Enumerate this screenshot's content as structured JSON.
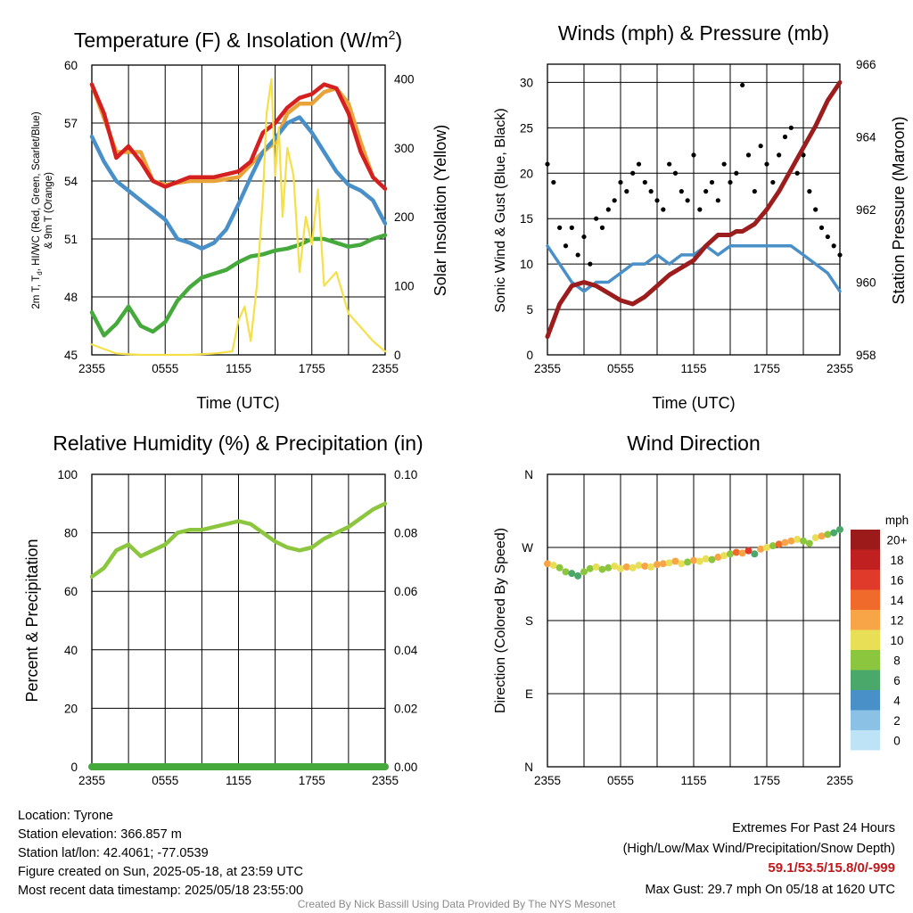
{
  "chart_data": [
    {
      "type": "line",
      "title": "Temperature (F) & Insolation (W/m²)",
      "title_parts": {
        "main": "Temperature (F) & Insolation (W/m",
        "sup": "2",
        "end": ")"
      },
      "xlabel": "Time (UTC)",
      "ylabel_lines": [
        "2m T, T",
        "d",
        ", HI/WC (Red, Green, Scarlet/Blue)",
        "& 9m T (Orange)"
      ],
      "y2label": "Solar Insolation (Yellow)",
      "xticks": [
        "2355",
        "0555",
        "1155",
        "1755",
        "2355"
      ],
      "ylim": [
        45,
        60
      ],
      "yticks": [
        45,
        48,
        51,
        54,
        57,
        60
      ],
      "y2lim": [
        0,
        420
      ],
      "y2ticks": [
        0,
        100,
        200,
        300,
        400
      ],
      "series": [
        {
          "color": "#e8a33a",
          "axis": "left",
          "x": [
            0,
            2,
            4,
            5,
            6,
            8,
            10,
            12,
            14,
            15,
            16,
            17,
            18,
            19,
            20,
            21,
            22,
            23,
            24
          ],
          "values": [
            59.0,
            55.5,
            55.5,
            54.0,
            53.8,
            54.0,
            54.0,
            54.2,
            55.5,
            56.0,
            57.5,
            58.0,
            58.0,
            58.6,
            58.8,
            58.0,
            56.0,
            54.2,
            53.6
          ]
        },
        {
          "color": "#d42020",
          "axis": "left",
          "x": [
            0,
            1,
            2,
            3,
            4,
            5,
            6,
            8,
            10,
            12,
            13,
            14,
            15,
            16,
            17,
            18,
            19,
            20,
            21,
            22,
            23,
            24
          ],
          "values": [
            59.0,
            57.5,
            55.2,
            55.8,
            55.0,
            54.0,
            53.7,
            54.2,
            54.2,
            54.5,
            55.0,
            56.5,
            57.0,
            57.8,
            58.3,
            58.5,
            59.0,
            58.8,
            57.5,
            55.5,
            54.2,
            53.6
          ]
        },
        {
          "color": "#4a90c8",
          "axis": "left",
          "x": [
            0,
            1,
            2,
            3,
            4,
            5,
            6,
            7,
            8,
            9,
            10,
            11,
            12,
            13,
            14,
            15,
            16,
            17,
            18,
            19,
            20,
            21,
            22,
            23,
            24
          ],
          "values": [
            56.3,
            55.0,
            54.0,
            53.5,
            53.0,
            52.5,
            52.0,
            51.0,
            50.8,
            50.5,
            50.8,
            51.5,
            52.8,
            54.2,
            55.5,
            56.2,
            57.0,
            57.3,
            56.5,
            55.5,
            54.5,
            53.8,
            53.5,
            53.0,
            51.8
          ]
        },
        {
          "color": "#46a93c",
          "axis": "left",
          "x": [
            0,
            1,
            2,
            3,
            4,
            5,
            6,
            7,
            8,
            9,
            10,
            11,
            12,
            13,
            14,
            15,
            16,
            17,
            18,
            19,
            20,
            21,
            22,
            23,
            24
          ],
          "values": [
            47.2,
            46.0,
            46.6,
            47.5,
            46.5,
            46.2,
            46.7,
            47.8,
            48.5,
            49.0,
            49.2,
            49.4,
            49.8,
            50.1,
            50.2,
            50.4,
            50.5,
            50.7,
            51.0,
            51.0,
            50.8,
            50.6,
            50.7,
            51.0,
            51.2
          ]
        },
        {
          "color": "#f5e04a",
          "axis": "right",
          "x": [
            0,
            2,
            4,
            6,
            8,
            10,
            11.5,
            12,
            12.5,
            13,
            13.5,
            14,
            14.3,
            14.7,
            15,
            15.3,
            15.6,
            16,
            16.5,
            17,
            17.5,
            18,
            18.5,
            19,
            20,
            21,
            22,
            23,
            24
          ],
          "values": [
            15,
            2,
            0,
            0,
            0,
            2,
            5,
            50,
            70,
            20,
            100,
            230,
            350,
            400,
            260,
            330,
            200,
            300,
            260,
            120,
            200,
            160,
            240,
            100,
            120,
            60,
            40,
            20,
            5
          ]
        }
      ]
    },
    {
      "type": "scatter",
      "title": "Winds (mph) & Pressure (mb)",
      "xlabel": "Time (UTC)",
      "ylabel": "Sonic Wind & Gust (Blue, Black)",
      "y2label": "Station Pressure (Maroon)",
      "xticks": [
        "2355",
        "0555",
        "1155",
        "1755",
        "2355"
      ],
      "ylim": [
        0,
        32
      ],
      "yticks": [
        0,
        5,
        10,
        15,
        20,
        25,
        30
      ],
      "y2lim": [
        958,
        966
      ],
      "y2ticks": [
        958,
        960,
        962,
        964,
        966
      ],
      "series": [
        {
          "type": "line",
          "color": "#4a90c8",
          "axis": "left",
          "x": [
            0,
            1,
            2,
            3,
            4,
            5,
            6,
            7,
            8,
            9,
            10,
            11,
            12,
            13,
            14,
            15,
            16,
            17,
            18,
            19,
            20,
            21,
            22,
            23,
            24
          ],
          "values": [
            12,
            10,
            8,
            7,
            8,
            8,
            9,
            10,
            10,
            11,
            10,
            11,
            11,
            12,
            11,
            12,
            12,
            12,
            12,
            12,
            12,
            11,
            10,
            9,
            7
          ]
        },
        {
          "type": "scatter",
          "color": "#000000",
          "axis": "left",
          "x": [
            0,
            0.5,
            1,
            1.5,
            2,
            2.5,
            3,
            3.5,
            4,
            4.5,
            5,
            5.5,
            6,
            6.5,
            7,
            7.5,
            8,
            8.5,
            9,
            9.5,
            10,
            10.5,
            11,
            11.5,
            12,
            12.5,
            13,
            13.5,
            14,
            14.5,
            15,
            15.5,
            16,
            16.5,
            17,
            17.5,
            18,
            18.5,
            19,
            19.5,
            20,
            20.5,
            21,
            21.5,
            22,
            22.5,
            23,
            23.5,
            24
          ],
          "values": [
            21,
            19,
            14,
            12,
            14,
            11,
            13,
            10,
            15,
            14,
            16,
            17,
            19,
            18,
            20,
            21,
            19,
            18,
            17,
            16,
            21,
            20,
            18,
            17,
            22,
            16,
            18,
            19,
            17,
            21,
            19,
            20,
            29.7,
            22,
            18,
            23,
            21,
            19,
            22,
            24,
            25,
            20,
            22,
            18,
            16,
            14,
            13,
            12,
            11
          ]
        },
        {
          "type": "line",
          "color": "#9b1d1d",
          "axis": "right",
          "x": [
            0,
            1,
            2,
            3,
            4,
            5,
            6,
            7,
            8,
            9,
            10,
            11,
            12,
            13,
            14,
            15,
            15.5,
            16,
            17,
            18,
            19,
            20,
            21,
            22,
            23,
            24
          ],
          "values": [
            958.5,
            959.4,
            959.9,
            960.0,
            959.9,
            959.7,
            959.5,
            959.4,
            959.6,
            959.9,
            960.2,
            960.4,
            960.6,
            961.0,
            961.3,
            961.3,
            961.4,
            961.4,
            961.6,
            962.0,
            962.5,
            963.1,
            963.7,
            964.3,
            965.0,
            965.5
          ]
        }
      ]
    },
    {
      "type": "line",
      "title": "Relative Humidity (%) & Precipitation (in)",
      "ylabel": "Percent & Precipitation",
      "xticks": [
        "2355",
        "0555",
        "1155",
        "1755",
        "2355"
      ],
      "ylim": [
        0,
        100
      ],
      "yticks": [
        0,
        20,
        40,
        60,
        80,
        100
      ],
      "y2lim": [
        0,
        0.1
      ],
      "y2ticks": [
        "0.00",
        "0.02",
        "0.04",
        "0.06",
        "0.08",
        "0.10"
      ],
      "series": [
        {
          "color": "#8cc63f",
          "axis": "left",
          "x": [
            0,
            1,
            2,
            3,
            4,
            5,
            6,
            7,
            8,
            9,
            10,
            11,
            12,
            13,
            14,
            15,
            16,
            17,
            18,
            19,
            20,
            21,
            22,
            23,
            24
          ],
          "values": [
            65,
            68,
            74,
            76,
            72,
            74,
            76,
            80,
            81,
            81,
            82,
            83,
            84,
            83,
            80,
            77,
            75,
            74,
            75,
            78,
            80,
            82,
            85,
            88,
            90
          ]
        },
        {
          "color": "#46a93c",
          "axis": "right",
          "x": [
            0,
            24
          ],
          "values": [
            0.0,
            0.0
          ]
        }
      ]
    },
    {
      "type": "scatter",
      "title": "Wind Direction",
      "ylabel": "Direction (Colored By Speed)",
      "xticks": [
        "2355",
        "0555",
        "1155",
        "1755",
        "2355"
      ],
      "ylim": [
        0,
        360
      ],
      "ytick_values": [
        0,
        90,
        180,
        270,
        360
      ],
      "ytick_labels": [
        "N",
        "E",
        "S",
        "W",
        "N"
      ],
      "points": [
        {
          "x": 0,
          "dir": 250,
          "spd": 12
        },
        {
          "x": 0.5,
          "dir": 248,
          "spd": 10
        },
        {
          "x": 1,
          "dir": 245,
          "spd": 9
        },
        {
          "x": 1.5,
          "dir": 240,
          "spd": 8
        },
        {
          "x": 2,
          "dir": 238,
          "spd": 7
        },
        {
          "x": 2.5,
          "dir": 235,
          "spd": 6
        },
        {
          "x": 3,
          "dir": 240,
          "spd": 8
        },
        {
          "x": 3.5,
          "dir": 244,
          "spd": 9
        },
        {
          "x": 4,
          "dir": 246,
          "spd": 10
        },
        {
          "x": 4.5,
          "dir": 243,
          "spd": 8
        },
        {
          "x": 5,
          "dir": 245,
          "spd": 9
        },
        {
          "x": 5.5,
          "dir": 247,
          "spd": 10
        },
        {
          "x": 6,
          "dir": 244,
          "spd": 11
        },
        {
          "x": 6.5,
          "dir": 246,
          "spd": 12
        },
        {
          "x": 7,
          "dir": 245,
          "spd": 10
        },
        {
          "x": 7.5,
          "dir": 248,
          "spd": 11
        },
        {
          "x": 8,
          "dir": 247,
          "spd": 12
        },
        {
          "x": 8.5,
          "dir": 246,
          "spd": 10
        },
        {
          "x": 9,
          "dir": 249,
          "spd": 12
        },
        {
          "x": 9.5,
          "dir": 250,
          "spd": 13
        },
        {
          "x": 10,
          "dir": 251,
          "spd": 11
        },
        {
          "x": 10.5,
          "dir": 253,
          "spd": 12
        },
        {
          "x": 11,
          "dir": 250,
          "spd": 10
        },
        {
          "x": 11.5,
          "dir": 252,
          "spd": 9
        },
        {
          "x": 12,
          "dir": 254,
          "spd": 12
        },
        {
          "x": 12.5,
          "dir": 253,
          "spd": 11
        },
        {
          "x": 13,
          "dir": 256,
          "spd": 10
        },
        {
          "x": 13.5,
          "dir": 255,
          "spd": 8
        },
        {
          "x": 14,
          "dir": 258,
          "spd": 13
        },
        {
          "x": 14.5,
          "dir": 260,
          "spd": 11
        },
        {
          "x": 15,
          "dir": 262,
          "spd": 9
        },
        {
          "x": 15.5,
          "dir": 264,
          "spd": 14
        },
        {
          "x": 16,
          "dir": 263,
          "spd": 12
        },
        {
          "x": 16.5,
          "dir": 266,
          "spd": 16
        },
        {
          "x": 17,
          "dir": 262,
          "spd": 7
        },
        {
          "x": 17.5,
          "dir": 268,
          "spd": 12
        },
        {
          "x": 18,
          "dir": 270,
          "spd": 10
        },
        {
          "x": 18.5,
          "dir": 272,
          "spd": 9
        },
        {
          "x": 19,
          "dir": 274,
          "spd": 14
        },
        {
          "x": 19.5,
          "dir": 276,
          "spd": 12
        },
        {
          "x": 20,
          "dir": 278,
          "spd": 13
        },
        {
          "x": 20.5,
          "dir": 280,
          "spd": 11
        },
        {
          "x": 21,
          "dir": 278,
          "spd": 9
        },
        {
          "x": 21.5,
          "dir": 275,
          "spd": 8
        },
        {
          "x": 22,
          "dir": 282,
          "spd": 10
        },
        {
          "x": 22.5,
          "dir": 284,
          "spd": 12
        },
        {
          "x": 23,
          "dir": 286,
          "spd": 8
        },
        {
          "x": 23.5,
          "dir": 288,
          "spd": 7
        },
        {
          "x": 24,
          "dir": 292,
          "spd": 6
        }
      ],
      "colorbar": {
        "title": "mph",
        "labels": [
          "20+",
          "18",
          "16",
          "14",
          "12",
          "10",
          "8",
          "6",
          "4",
          "2",
          "0"
        ],
        "colors": [
          "#9b1b1b",
          "#c0201f",
          "#e03a2a",
          "#f06a2c",
          "#f7a546",
          "#e9df57",
          "#8cc63f",
          "#4aa86a",
          "#4a90c8",
          "#8cc1e6",
          "#bfe3f6"
        ]
      }
    }
  ],
  "info": {
    "location": "Location: Tyrone",
    "elevation": "Station elevation: 366.857 m",
    "latlon": "Station lat/lon: 42.4061; -77.0539",
    "created": "Figure created on Sun, 2025-05-18, at 23:59 UTC",
    "recent": "Most recent data timestamp: 2025/05/18 23:55:00"
  },
  "extremes": {
    "title": "Extremes For Past 24 Hours",
    "subtitle": "(High/Low/Max Wind/Precipitation/Snow Depth)",
    "values": "59.1/53.5/15.8/0/-999",
    "gust": "Max Gust: 29.7 mph On 05/18 at 1620 UTC"
  },
  "credit": "Created By Nick Bassill Using Data Provided By The NYS Mesonet"
}
